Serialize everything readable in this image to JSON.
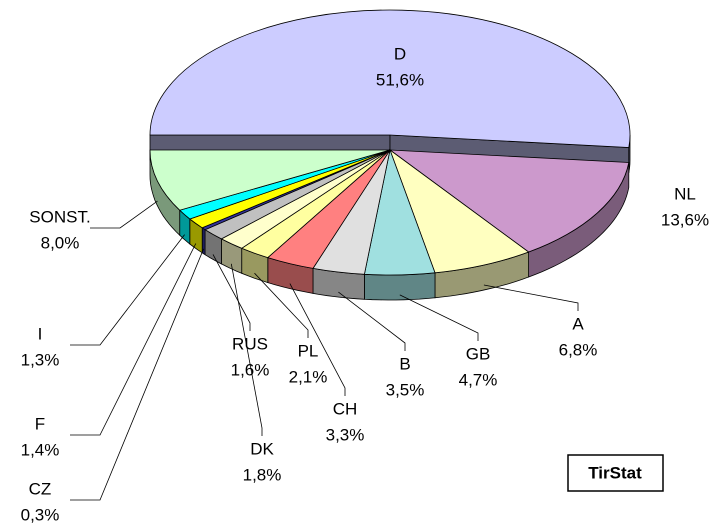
{
  "chart_data": {
    "type": "pie",
    "categories": [
      "D",
      "NL",
      "A",
      "GB",
      "B",
      "CH",
      "PL",
      "DK",
      "RUS",
      "CZ",
      "F",
      "I",
      "SONST."
    ],
    "values": [
      51.6,
      13.6,
      6.8,
      4.7,
      3.5,
      3.3,
      2.1,
      1.8,
      1.6,
      0.3,
      1.4,
      1.3,
      8.0
    ],
    "value_labels": [
      "51,6%",
      "13,6%",
      "6,8%",
      "4,7%",
      "3,5%",
      "3,3%",
      "2,1%",
      "1,8%",
      "1,6%",
      "0,3%",
      "1,4%",
      "1,3%",
      "8,0%"
    ],
    "colors": [
      "#ccccff",
      "#cc99cc",
      "#ffffc0",
      "#a0e0e0",
      "#e0e0e0",
      "#ff8080",
      "#ffffa0",
      "#ffffcc",
      "#c0c0c0",
      "#333399",
      "#ffff00",
      "#00ffff",
      "#ccffcc"
    ],
    "watermark": "TirStat"
  }
}
